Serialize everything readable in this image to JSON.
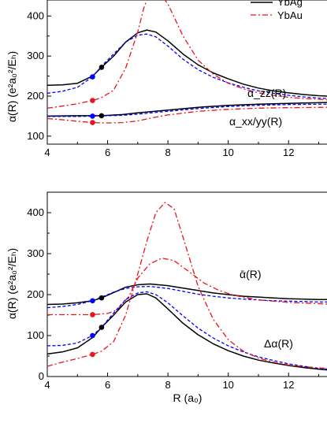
{
  "colors": {
    "ybag": "#000000",
    "ybag_dashed": "#0000ff",
    "ybau": "#e8141c"
  },
  "legend": {
    "entries": [
      "YbAg",
      "YbAu"
    ]
  },
  "chart_data": [
    {
      "type": "line",
      "panel": "top",
      "ylabel": "α(R) (e²a₀²/Eₕ)",
      "xlim": [
        4,
        13.3
      ],
      "ylim": [
        80,
        440
      ],
      "yticks": [
        100,
        200,
        300,
        400
      ],
      "xticks": [
        4,
        6,
        8,
        10,
        12
      ],
      "annotations": [
        "α_zz(R)",
        "α_xx/yy(R)"
      ],
      "series": [
        {
          "name": "YbAg",
          "style": "solid",
          "color": "#000000",
          "group": "zz",
          "x": [
            4.0,
            4.5,
            5.0,
            5.5,
            5.8,
            6.2,
            6.6,
            7.0,
            7.3,
            7.6,
            8.0,
            8.5,
            9.0,
            9.5,
            10.0,
            10.5,
            11.0,
            11.5,
            12.0,
            12.5,
            13.0,
            13.3
          ],
          "y": [
            227,
            228,
            232,
            250,
            272,
            300,
            335,
            358,
            365,
            360,
            338,
            305,
            278,
            258,
            243,
            230,
            220,
            213,
            208,
            204,
            201,
            200
          ]
        },
        {
          "style": "dashed",
          "color": "#0000ff",
          "group": "zz",
          "x": [
            4.0,
            4.5,
            5.0,
            5.5,
            5.8,
            6.2,
            6.6,
            7.0,
            7.3,
            7.6,
            8.0,
            8.5,
            9.0,
            9.5,
            10.0,
            10.5,
            11.0,
            11.5,
            12.0,
            12.5,
            13.0,
            13.3
          ],
          "y": [
            207,
            212,
            222,
            248,
            275,
            305,
            335,
            352,
            355,
            348,
            325,
            292,
            266,
            247,
            233,
            222,
            213,
            207,
            202,
            198,
            195,
            194
          ]
        },
        {
          "name": "YbAu",
          "style": "dashdot",
          "color": "#e8141c",
          "group": "zz",
          "x": [
            4.0,
            4.5,
            5.0,
            5.5,
            5.8,
            6.2,
            6.6,
            7.0,
            7.2,
            7.5,
            8.0,
            8.5,
            9.0,
            9.5,
            10.0,
            10.5,
            11.0,
            11.5,
            12.0,
            12.5,
            13.0,
            13.3
          ],
          "y": [
            170,
            175,
            181,
            189,
            196,
            215,
            270,
            360,
            420,
            480,
            430,
            350,
            290,
            255,
            232,
            218,
            208,
            202,
            197,
            194,
            192,
            191
          ]
        },
        {
          "style": "solid",
          "color": "#000000",
          "group": "xx",
          "x": [
            4.0,
            5.0,
            5.8,
            6.5,
            7.0,
            8.0,
            9.0,
            10.0,
            11.0,
            12.0,
            13.3
          ],
          "y": [
            150,
            151,
            151,
            154,
            158,
            165,
            172,
            177,
            180,
            182,
            184
          ]
        },
        {
          "style": "dashed",
          "color": "#0000ff",
          "group": "xx",
          "x": [
            4.0,
            5.0,
            5.5,
            6.5,
            7.0,
            8.0,
            9.0,
            10.0,
            11.0,
            12.0,
            13.3
          ],
          "y": [
            149,
            149,
            150,
            152,
            155,
            162,
            169,
            174,
            177,
            179,
            180
          ]
        },
        {
          "style": "dashdot",
          "color": "#e8141c",
          "group": "xx",
          "x": [
            4.0,
            4.5,
            5.0,
            5.5,
            6.0,
            6.5,
            7.0,
            7.5,
            8.0,
            9.0,
            10.0,
            11.0,
            12.0,
            13.3
          ],
          "y": [
            144,
            141,
            137,
            134,
            133,
            134,
            138,
            146,
            153,
            162,
            167,
            170,
            171,
            172
          ]
        }
      ],
      "markers": [
        {
          "x": 5.8,
          "y": 272,
          "color": "#000000"
        },
        {
          "x": 5.5,
          "y": 248,
          "color": "#0000ff"
        },
        {
          "x": 5.5,
          "y": 189,
          "color": "#e8141c"
        },
        {
          "x": 5.8,
          "y": 151,
          "color": "#000000"
        },
        {
          "x": 5.5,
          "y": 150,
          "color": "#0000ff"
        },
        {
          "x": 5.5,
          "y": 134,
          "color": "#e8141c"
        }
      ]
    },
    {
      "type": "line",
      "panel": "bottom",
      "xlabel": "R (a₀)",
      "ylabel": "α(R) (e²a₀²/Eₕ)",
      "xlim": [
        4,
        13.3
      ],
      "ylim": [
        0,
        450
      ],
      "yticks": [
        0,
        100,
        200,
        300,
        400
      ],
      "xticks": [
        4,
        6,
        8,
        10,
        12
      ],
      "annotations": [
        "ᾱ(R)",
        "Δα(R)"
      ],
      "series": [
        {
          "style": "solid",
          "color": "#000000",
          "group": "mean",
          "x": [
            4.0,
            4.5,
            5.0,
            5.5,
            5.8,
            6.2,
            6.6,
            7.0,
            7.4,
            8.0,
            8.5,
            9.0,
            9.5,
            10.0,
            10.5,
            11.0,
            11.5,
            12.0,
            12.5,
            13.0,
            13.3
          ],
          "y": [
            176,
            177,
            180,
            185,
            192,
            205,
            218,
            224,
            226,
            222,
            216,
            210,
            204,
            200,
            196,
            194,
            192,
            190,
            189,
            188,
            188
          ]
        },
        {
          "style": "dashed",
          "color": "#0000ff",
          "group": "mean",
          "x": [
            4.0,
            4.5,
            5.0,
            5.5,
            5.8,
            6.2,
            6.6,
            7.0,
            7.4,
            8.0,
            8.5,
            9.0,
            9.5,
            10.0,
            10.5,
            11.0,
            11.5,
            12.0,
            12.5,
            13.0,
            13.3
          ],
          "y": [
            168,
            171,
            176,
            185,
            194,
            206,
            215,
            219,
            220,
            215,
            208,
            201,
            196,
            192,
            189,
            187,
            185,
            184,
            183,
            182,
            182
          ]
        },
        {
          "style": "dashdot",
          "color": "#e8141c",
          "group": "mean",
          "x": [
            4.0,
            4.5,
            5.0,
            5.5,
            6.0,
            6.3,
            6.7,
            7.0,
            7.4,
            7.8,
            8.2,
            8.7,
            9.2,
            9.7,
            10.2,
            11.0,
            12.0,
            13.3
          ],
          "y": [
            151,
            151,
            151,
            151,
            154,
            162,
            195,
            240,
            275,
            289,
            283,
            256,
            228,
            210,
            198,
            187,
            181,
            177
          ]
        },
        {
          "style": "solid",
          "color": "#000000",
          "group": "delta",
          "x": [
            4.0,
            4.5,
            5.0,
            5.5,
            5.8,
            6.2,
            6.6,
            7.0,
            7.3,
            7.6,
            8.0,
            8.5,
            9.0,
            9.5,
            10.0,
            10.5,
            11.0,
            11.5,
            12.0,
            12.5,
            13.0,
            13.3
          ],
          "y": [
            55,
            60,
            70,
            95,
            120,
            150,
            182,
            200,
            202,
            192,
            165,
            130,
            102,
            80,
            63,
            50,
            40,
            33,
            27,
            22,
            18,
            16
          ]
        },
        {
          "style": "dashed",
          "color": "#0000ff",
          "group": "delta",
          "x": [
            4.0,
            4.5,
            5.0,
            5.5,
            5.8,
            6.2,
            6.6,
            7.0,
            7.3,
            7.6,
            8.0,
            8.5,
            9.0,
            9.5,
            10.0,
            10.5,
            11.0,
            11.5,
            12.0,
            12.5,
            13.0,
            13.3
          ],
          "y": [
            75,
            76,
            82,
            100,
            120,
            155,
            188,
            204,
            207,
            200,
            180,
            148,
            118,
            94,
            75,
            60,
            48,
            39,
            31,
            25,
            20,
            18
          ]
        },
        {
          "style": "dashdot",
          "color": "#e8141c",
          "group": "delta",
          "x": [
            4.0,
            4.5,
            5.0,
            5.5,
            5.8,
            6.2,
            6.6,
            7.0,
            7.3,
            7.6,
            7.9,
            8.2,
            8.5,
            9.0,
            9.5,
            10.0,
            10.5,
            11.0,
            11.5,
            12.0,
            12.5,
            13.0,
            13.3
          ],
          "y": [
            25,
            35,
            44,
            54,
            62,
            85,
            150,
            250,
            330,
            400,
            425,
            410,
            340,
            220,
            140,
            90,
            62,
            45,
            35,
            28,
            24,
            21,
            20
          ]
        }
      ],
      "markers": [
        {
          "x": 5.8,
          "y": 192,
          "color": "#000000"
        },
        {
          "x": 5.5,
          "y": 185,
          "color": "#0000ff"
        },
        {
          "x": 5.5,
          "y": 151,
          "color": "#e8141c"
        },
        {
          "x": 5.8,
          "y": 120,
          "color": "#000000"
        },
        {
          "x": 5.5,
          "y": 100,
          "color": "#0000ff"
        },
        {
          "x": 5.5,
          "y": 54,
          "color": "#e8141c"
        }
      ]
    }
  ]
}
